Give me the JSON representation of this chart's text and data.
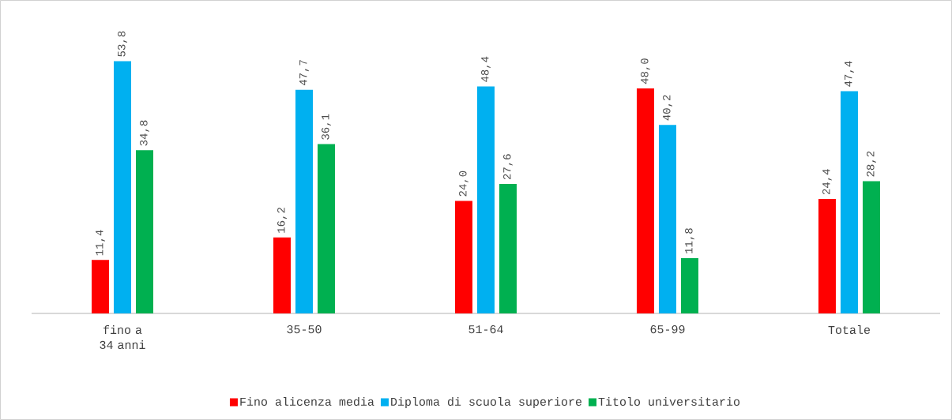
{
  "chart_data": {
    "type": "bar",
    "categories": [
      "fino a 34 anni",
      "35-50",
      "51-64",
      "65-99",
      "Totale"
    ],
    "series": [
      {
        "name": "Fino alicenza media",
        "color": "#ff0000",
        "values": [
          11.4,
          16.2,
          24.0,
          48.0,
          24.4
        ],
        "value_labels": [
          "11,4",
          "16,2",
          "24,0",
          "48,0",
          "24,4"
        ]
      },
      {
        "name": "Diploma di scuola superiore",
        "color": "#00b0f0",
        "values": [
          53.8,
          47.7,
          48.4,
          40.2,
          47.4
        ],
        "value_labels": [
          "53,8",
          "47,7",
          "48,4",
          "40,2",
          "47,4"
        ]
      },
      {
        "name": "Titolo universitario",
        "color": "#00b050",
        "values": [
          34.8,
          36.1,
          27.6,
          11.8,
          28.2
        ],
        "value_labels": [
          "34,8",
          "36,1",
          "27,6",
          "11,8",
          "28,2"
        ]
      }
    ],
    "legend": "bottom"
  }
}
